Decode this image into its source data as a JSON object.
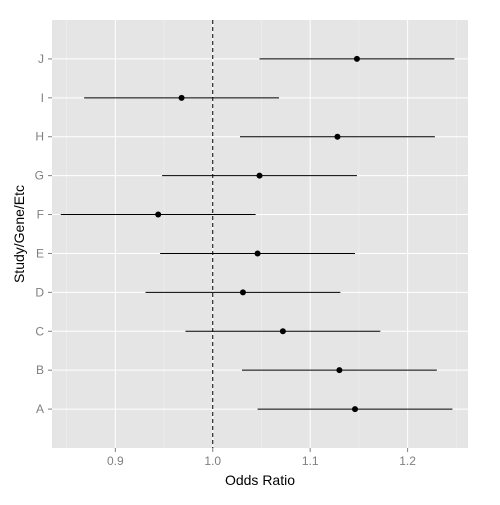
{
  "chart_data": {
    "type": "forest",
    "title": "",
    "xlabel": "Odds Ratio",
    "ylabel": "Study/Gene/Etc",
    "xlim": [
      0.835,
      1.262
    ],
    "x_ticks": [
      0.9,
      1.0,
      1.1,
      1.2
    ],
    "x_tick_labels": [
      "0.9",
      "1.0",
      "1.1",
      "1.2"
    ],
    "x_minor_ticks": [
      0.85,
      0.95,
      1.05,
      1.15,
      1.25
    ],
    "reference_line": 1.0,
    "reference_line_style": "dashed",
    "grid": true,
    "colors": {
      "panel_background": "#e5e5e5",
      "grid": "#ffffff",
      "point": "#000000",
      "line": "#000000",
      "tick_label": "#7f7f7f"
    },
    "categories": [
      "A",
      "B",
      "C",
      "D",
      "E",
      "F",
      "G",
      "H",
      "I",
      "J"
    ],
    "estimate": [
      1.146,
      1.13,
      1.072,
      1.031,
      1.046,
      0.944,
      1.048,
      1.128,
      0.968,
      1.148
    ],
    "lower": [
      1.046,
      1.03,
      0.972,
      0.931,
      0.946,
      0.844,
      0.948,
      1.028,
      0.868,
      1.048
    ],
    "upper": [
      1.246,
      1.23,
      1.172,
      1.131,
      1.146,
      1.044,
      1.148,
      1.228,
      1.068,
      1.248
    ]
  }
}
